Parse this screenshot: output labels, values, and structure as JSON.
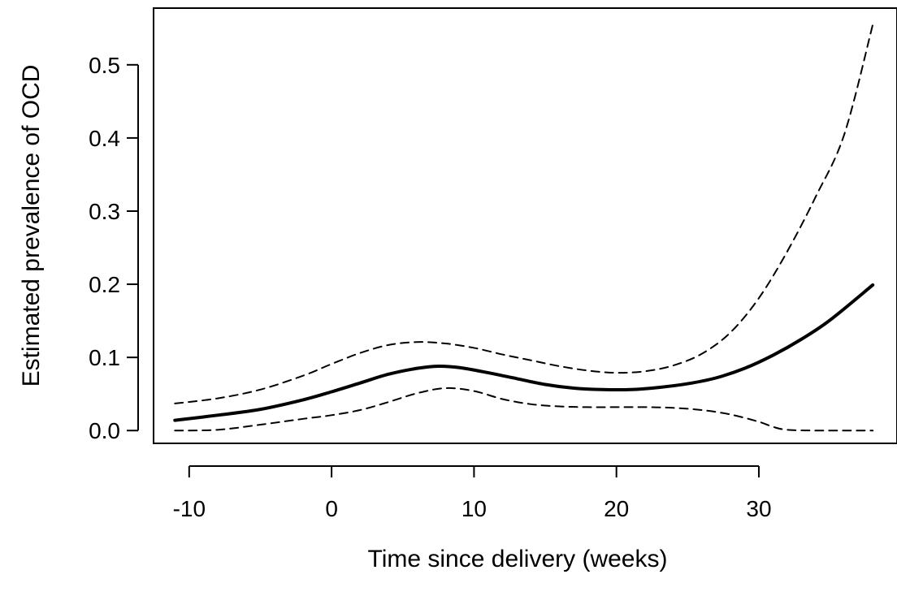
{
  "chart_data": {
    "type": "line",
    "title": "",
    "xlabel": "Time since delivery (weeks)",
    "ylabel": "Estimated prevalence of OCD",
    "xlim": [
      -12.5,
      39.7
    ],
    "ylim": [
      -0.0175,
      0.5775
    ],
    "x_ticks": [
      -10,
      0,
      10,
      20,
      30
    ],
    "y_ticks": [
      0.0,
      0.1,
      0.2,
      0.3,
      0.4,
      0.5
    ],
    "x_tick_labels": [
      "-10",
      "0",
      "10",
      "20",
      "30"
    ],
    "y_tick_labels": [
      "0.0",
      "0.1",
      "0.2",
      "0.3",
      "0.4",
      "0.5"
    ],
    "grid": false,
    "legend": "none",
    "series": [
      {
        "style": "solid",
        "color": "#000000",
        "x": [
          -11,
          -8,
          -5,
          -2,
          0,
          2,
          4,
          6,
          7.5,
          9,
          11,
          13,
          15,
          17,
          19,
          21,
          23,
          25,
          27,
          29,
          31,
          33,
          35,
          38
        ],
        "y": [
          0.014,
          0.021,
          0.029,
          0.042,
          0.053,
          0.065,
          0.077,
          0.085,
          0.088,
          0.086,
          0.079,
          0.071,
          0.063,
          0.058,
          0.056,
          0.056,
          0.059,
          0.064,
          0.072,
          0.085,
          0.103,
          0.125,
          0.151,
          0.199
        ]
      },
      {
        "style": "dashed",
        "color": "#000000",
        "x": [
          -11,
          -8,
          -5,
          -2,
          0,
          2,
          4,
          6,
          8,
          10,
          12,
          14,
          16,
          18,
          20,
          22,
          24,
          26,
          28,
          30,
          32,
          34,
          36,
          38
        ],
        "y": [
          0.037,
          0.044,
          0.056,
          0.075,
          0.091,
          0.106,
          0.117,
          0.121,
          0.119,
          0.113,
          0.104,
          0.096,
          0.088,
          0.082,
          0.079,
          0.081,
          0.089,
          0.105,
          0.134,
          0.181,
          0.245,
          0.32,
          0.405,
          0.555
        ]
      },
      {
        "style": "dashed",
        "color": "#000000",
        "x": [
          -11,
          -8,
          -5,
          -2,
          0,
          2,
          4,
          6,
          8,
          10,
          12,
          14,
          16,
          18,
          20,
          22,
          24,
          26,
          28,
          30,
          31,
          32,
          34,
          36,
          38
        ],
        "y": [
          0.0,
          0.001,
          0.008,
          0.016,
          0.021,
          0.028,
          0.039,
          0.051,
          0.058,
          0.054,
          0.043,
          0.036,
          0.033,
          0.032,
          0.032,
          0.032,
          0.031,
          0.028,
          0.022,
          0.012,
          0.005,
          0.001,
          0.0,
          0.0,
          0.0
        ]
      }
    ]
  }
}
